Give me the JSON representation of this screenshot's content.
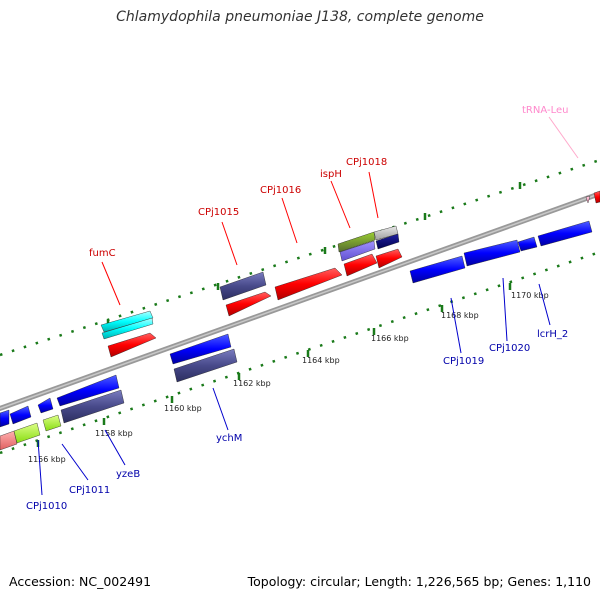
{
  "title": "Chlamydophila pneumoniae J138, complete genome",
  "footer": {
    "accession": "Accession: NC_002491",
    "summary": "Topology: circular; Length: 1,226,565 bp; Genes: 1,110"
  },
  "colors": {
    "red": "#ff0000",
    "blue": "#0000ff",
    "slate": "#484a8a",
    "cyan": "#00ffff",
    "olive": "#6b8e23",
    "lime": "#aaff22",
    "salmon": "#f08080",
    "pink": "#ffaacc",
    "navy": "#00007a",
    "lavender": "#7b68ee",
    "label_forward": "#cc0000",
    "label_reverse": "#0000aa",
    "label_rna": "#ff88cc"
  },
  "ticks": [
    "1156 kbp",
    "1158 kbp",
    "1160 kbp",
    "1162 kbp",
    "1164 kbp",
    "1166 kbp",
    "1168 kbp",
    "1170 kbp"
  ],
  "forward_labels": [
    "fumC",
    "CPj1015",
    "CPj1016",
    "ispH",
    "CPj1018"
  ],
  "reverse_labels": [
    "CPj1010",
    "CPj1011",
    "yzeB",
    "ychM",
    "CPj1019",
    "CPj1020",
    "lcrH_2"
  ],
  "rna_labels": [
    "tRNA-Leu"
  ]
}
